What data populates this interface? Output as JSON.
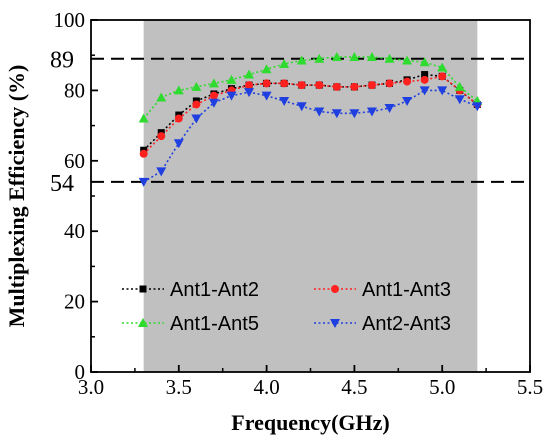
{
  "chart_data": {
    "type": "line",
    "title": "",
    "xlabel": "Frequency(GHz)",
    "ylabel": "Multiplexing Efficiency (%)",
    "xlim": [
      3.0,
      5.5
    ],
    "ylim": [
      0,
      100
    ],
    "xticks": [
      "3.0",
      "3.5",
      "4.0",
      "4.5",
      "5.0",
      "5.5"
    ],
    "yticks": [
      "0",
      "20",
      "40",
      "60",
      "80",
      "100"
    ],
    "grid": false,
    "legend_position": "lower-center",
    "shaded_region": {
      "x": [
        3.3,
        5.2
      ],
      "color": "#c0c0c0"
    },
    "reference_lines": [
      {
        "y": 89,
        "label": "89",
        "style": "dashed"
      },
      {
        "y": 54,
        "label": "54",
        "style": "dashed"
      }
    ],
    "series": [
      {
        "name": "Ant1-Ant2",
        "color": "#000000",
        "marker": "square",
        "x": [
          3.3,
          3.4,
          3.5,
          3.6,
          3.7,
          3.8,
          3.9,
          4.0,
          4.1,
          4.2,
          4.3,
          4.4,
          4.5,
          4.6,
          4.7,
          4.8,
          4.9,
          5.0,
          5.1,
          5.2
        ],
        "y": [
          63,
          68,
          73,
          77,
          79,
          80.5,
          81.5,
          82,
          82,
          81.5,
          81.5,
          81,
          81,
          81.5,
          82,
          83,
          84.5,
          84,
          80,
          76
        ]
      },
      {
        "name": "Ant1-Ant3",
        "color": "#ff2020",
        "marker": "circle",
        "x": [
          3.3,
          3.4,
          3.5,
          3.6,
          3.7,
          3.8,
          3.9,
          4.0,
          4.1,
          4.2,
          4.3,
          4.4,
          4.5,
          4.6,
          4.7,
          4.8,
          4.9,
          5.0,
          5.1,
          5.2
        ],
        "y": [
          62,
          67,
          72,
          76,
          78.5,
          80,
          81.5,
          82,
          82,
          81.5,
          81.5,
          81,
          81,
          81.5,
          82,
          82.5,
          83,
          84,
          80,
          76
        ]
      },
      {
        "name": "Ant1-Ant5",
        "color": "#2edb2e",
        "marker": "triangle-up",
        "x": [
          3.3,
          3.4,
          3.5,
          3.6,
          3.7,
          3.8,
          3.9,
          4.0,
          4.1,
          4.2,
          4.3,
          4.4,
          4.5,
          4.6,
          4.7,
          4.8,
          4.9,
          5.0,
          5.1,
          5.2
        ],
        "y": [
          72,
          78,
          80,
          81,
          82,
          83,
          84.5,
          86,
          87.5,
          88.5,
          89,
          89.5,
          89.5,
          89.5,
          89,
          88.5,
          88,
          86.5,
          81,
          77
        ]
      },
      {
        "name": "Ant2-Ant3",
        "color": "#1f3fe0",
        "marker": "triangle-down",
        "x": [
          3.3,
          3.4,
          3.5,
          3.6,
          3.7,
          3.8,
          3.9,
          4.0,
          4.1,
          4.2,
          4.3,
          4.4,
          4.5,
          4.6,
          4.7,
          4.8,
          4.9,
          5.0,
          5.1,
          5.2
        ],
        "y": [
          54,
          57,
          65,
          72,
          76.5,
          78.5,
          79.5,
          78.5,
          77,
          75.5,
          74,
          73.5,
          73.5,
          74,
          75,
          77,
          80,
          80,
          77.5,
          75.5
        ]
      }
    ]
  }
}
